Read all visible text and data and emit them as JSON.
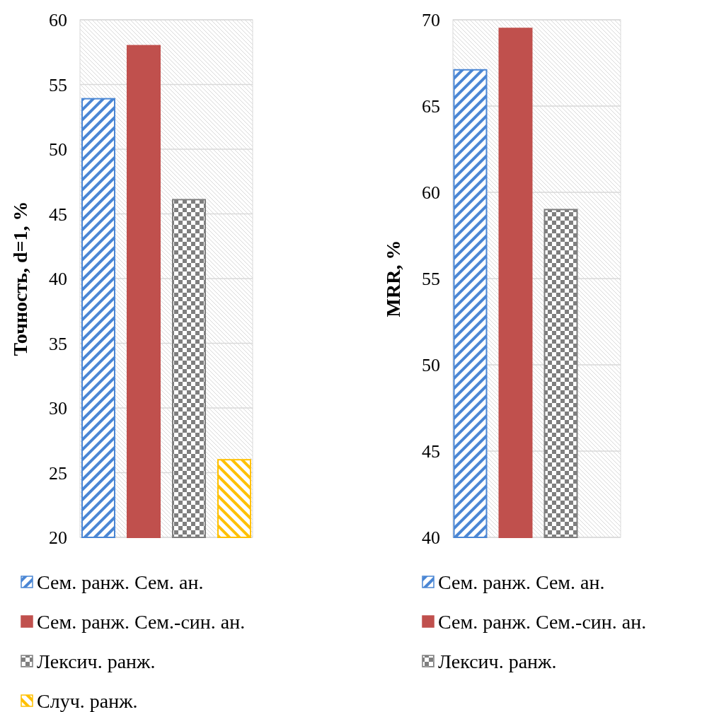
{
  "chart_data": [
    {
      "type": "bar",
      "ylabel": "Точность, d=1, %",
      "categories": [
        null
      ],
      "ylim": [
        20,
        60
      ],
      "yticks": [
        20,
        25,
        30,
        35,
        40,
        45,
        50,
        55,
        60
      ],
      "grid": "y",
      "legend": "bottom",
      "series": [
        {
          "name": "Сем. ранж. Сем. ан.",
          "color": "#4a86d4",
          "values": [
            53.9
          ]
        },
        {
          "name": "Сем. ранж. Сем.-син. ан.",
          "color": "#c0504d",
          "values": [
            58.0
          ]
        },
        {
          "name": "Лексич. ранж.",
          "color": "#7f7f7f",
          "values": [
            46.1
          ]
        },
        {
          "name": "Случ. ранж.",
          "color": "#ffc000",
          "values": [
            26.0
          ]
        }
      ]
    },
    {
      "type": "bar",
      "ylabel": "MRR, %",
      "categories": [
        null
      ],
      "ylim": [
        40,
        70
      ],
      "yticks": [
        40,
        45,
        50,
        55,
        60,
        65,
        70
      ],
      "grid": "y",
      "legend": "bottom",
      "series": [
        {
          "name": "Сем. ранж. Сем. ан.",
          "color": "#4a86d4",
          "values": [
            67.1
          ]
        },
        {
          "name": "Сем. ранж. Сем.-син. ан.",
          "color": "#c0504d",
          "values": [
            69.5
          ]
        },
        {
          "name": "Лексич. ранж.",
          "color": "#7f7f7f",
          "values": [
            59.0
          ]
        }
      ]
    }
  ]
}
